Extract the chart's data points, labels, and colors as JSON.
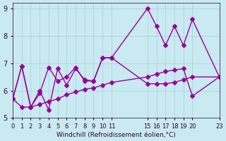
{
  "background_color": "#c8eaf0",
  "line_color": "#990099",
  "grid_color": "#aaccdd",
  "xlabel": "Windchill (Refroidissement éolien,°C)",
  "ylabel": "",
  "xlim": [
    0,
    23
  ],
  "ylim": [
    5,
    9.2
  ],
  "yticks": [
    5,
    6,
    7,
    8,
    9
  ],
  "xtick_positions": [
    0,
    1,
    2,
    3,
    4,
    5,
    6,
    7,
    8,
    9,
    10,
    11,
    15,
    16,
    17,
    18,
    19,
    20,
    23
  ],
  "xtick_labels": [
    "0",
    "1",
    "2",
    "3",
    "4",
    "5",
    "6",
    "7",
    "8",
    "9",
    "10",
    "11",
    "15",
    "16",
    "17",
    "18",
    "19",
    "20",
    "23"
  ],
  "line1_x": [
    0,
    1,
    2,
    3,
    4,
    5,
    6,
    7,
    8,
    9,
    10,
    11,
    15,
    16,
    17,
    18,
    19,
    20,
    23
  ],
  "line1_y": [
    5.7,
    6.9,
    5.4,
    6.0,
    5.3,
    6.8,
    6.2,
    6.8,
    6.4,
    6.35,
    7.2,
    7.2,
    6.25,
    6.25,
    6.25,
    6.3,
    6.4,
    6.5,
    6.5
  ],
  "line2_x": [
    0,
    1,
    2,
    3,
    4,
    5,
    6,
    7,
    8,
    9,
    10,
    11,
    15,
    16,
    17,
    18,
    19,
    20,
    23
  ],
  "line2_y": [
    5.7,
    5.4,
    5.4,
    5.5,
    5.6,
    5.7,
    5.85,
    5.95,
    6.05,
    6.1,
    6.2,
    6.3,
    6.5,
    6.6,
    6.7,
    6.75,
    6.8,
    5.8,
    6.5
  ],
  "line3_x": [
    0,
    1,
    2,
    3,
    4,
    5,
    6,
    7,
    8,
    9,
    10,
    11,
    15,
    16,
    17,
    18,
    19,
    20,
    23
  ],
  "line3_y": [
    5.7,
    6.9,
    5.4,
    5.9,
    6.85,
    6.35,
    6.5,
    6.85,
    6.35,
    6.35,
    7.2,
    7.2,
    9.0,
    8.35,
    7.65,
    8.35,
    7.65,
    8.6,
    6.5
  ],
  "marker_size": 3,
  "line_width": 1.0,
  "tick_color": "#330033",
  "spine_color": "#330033"
}
